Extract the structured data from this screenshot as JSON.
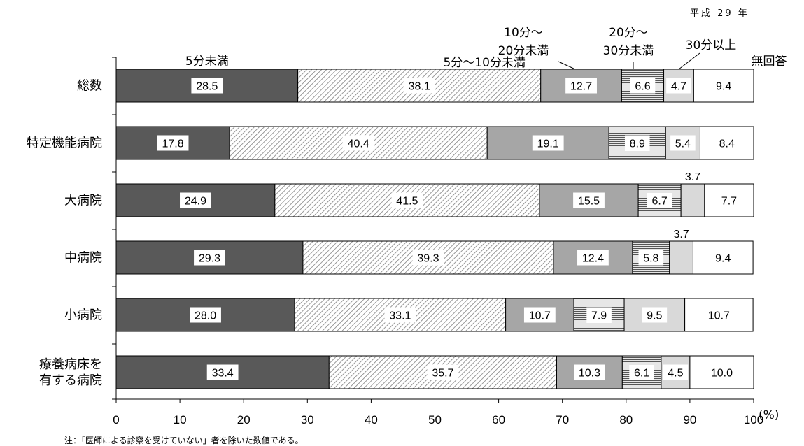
{
  "year_label": "平成 29 年",
  "note": "注：「医師による診察を受けていない」者を除いた数値である。",
  "chart_data": {
    "type": "bar",
    "orientation": "horizontal",
    "stacked": true,
    "categories": [
      "総数",
      "特定機能病院",
      "大病院",
      "中病院",
      "小病院",
      "療養病床を有する病院"
    ],
    "category_lines": [
      [
        "総数"
      ],
      [
        "特定機能病院"
      ],
      [
        "大病院"
      ],
      [
        "中病院"
      ],
      [
        "小病院"
      ],
      [
        "療養病床を",
        "有する病院"
      ]
    ],
    "series": [
      {
        "name": "5分未満",
        "values": [
          28.5,
          17.8,
          24.9,
          29.3,
          28.0,
          33.4
        ],
        "fill": "#595959",
        "pattern": "solid"
      },
      {
        "name": "5分～10分未満",
        "values": [
          38.1,
          40.4,
          41.5,
          39.3,
          33.1,
          35.7
        ],
        "fill": "#ffffff",
        "pattern": "diagonal"
      },
      {
        "name": "10分～20分未満",
        "values": [
          12.7,
          19.1,
          15.5,
          12.4,
          10.7,
          10.3
        ],
        "fill": "#a6a6a6",
        "pattern": "solid"
      },
      {
        "name": "20分～30分未満",
        "values": [
          6.6,
          8.9,
          6.7,
          5.8,
          7.9,
          6.1
        ],
        "fill": "#ffffff",
        "pattern": "horizontal-lines"
      },
      {
        "name": "30分以上",
        "values": [
          4.7,
          5.4,
          3.7,
          3.7,
          9.5,
          4.5
        ],
        "fill": "#d9d9d9",
        "pattern": "solid"
      },
      {
        "name": "無回答",
        "values": [
          9.4,
          8.4,
          7.7,
          9.4,
          10.7,
          10.0
        ],
        "fill": "#ffffff",
        "pattern": "solid"
      }
    ],
    "legend_labels": [
      {
        "lines": [
          "5分未満"
        ]
      },
      {
        "lines": [
          "5分～10分未満"
        ]
      },
      {
        "lines": [
          "10分～",
          "20分未満"
        ]
      },
      {
        "lines": [
          "20分～",
          "30分未満"
        ]
      },
      {
        "lines": [
          "30分以上"
        ]
      },
      {
        "lines": [
          "無回答"
        ]
      }
    ],
    "xlim": [
      0,
      100
    ],
    "xticks": [
      0,
      10,
      20,
      30,
      40,
      50,
      60,
      70,
      80,
      90,
      100
    ],
    "xlabel": "(%)",
    "grid": false
  }
}
